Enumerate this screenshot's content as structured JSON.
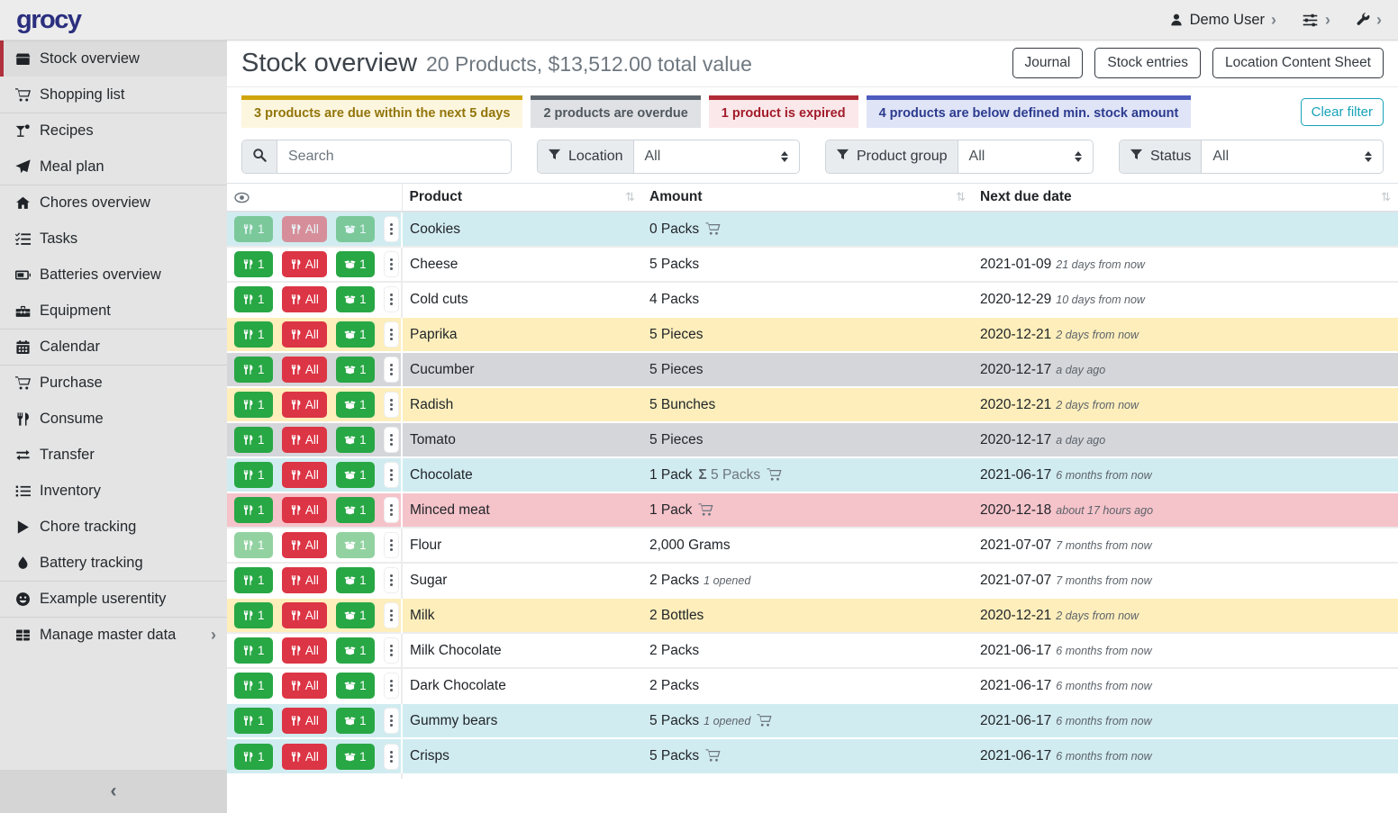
{
  "navbar": {
    "logo": "grocy",
    "user": {
      "label": "Demo User",
      "icon": "person"
    },
    "settings_icon": "sliders",
    "admin_icon": "wrench",
    "chevron_icon": "chevron-right"
  },
  "sidebar": {
    "items": [
      {
        "label": "Stock overview",
        "icon": "box",
        "active": true
      },
      {
        "label": "Shopping list",
        "icon": "cart"
      },
      {
        "label": "Recipes",
        "icon": "cocktail",
        "divider": true
      },
      {
        "label": "Meal plan",
        "icon": "paper-plane"
      },
      {
        "label": "Chores overview",
        "icon": "home",
        "divider": true
      },
      {
        "label": "Tasks",
        "icon": "tasks"
      },
      {
        "label": "Batteries overview",
        "icon": "battery"
      },
      {
        "label": "Equipment",
        "icon": "toolbox"
      },
      {
        "label": "Calendar",
        "icon": "calendar",
        "divider": true
      },
      {
        "label": "Purchase",
        "icon": "cart",
        "divider": true
      },
      {
        "label": "Consume",
        "icon": "utensils"
      },
      {
        "label": "Transfer",
        "icon": "transfer"
      },
      {
        "label": "Inventory",
        "icon": "list"
      },
      {
        "label": "Chore tracking",
        "icon": "play"
      },
      {
        "label": "Battery tracking",
        "icon": "droplet"
      },
      {
        "label": "Example userentity",
        "icon": "smiley",
        "divider": true
      },
      {
        "label": "Manage master data",
        "icon": "table-grid",
        "divider": true,
        "has_submenu": true
      }
    ],
    "collapse_icon": "‹"
  },
  "header": {
    "title": "Stock overview",
    "subtitle": "20 Products, $13,512.00 total value",
    "buttons": [
      "Journal",
      "Stock entries",
      "Location Content Sheet"
    ]
  },
  "filter_chips": [
    {
      "label": "3 products are due within the next 5 days",
      "type": "due"
    },
    {
      "label": "2 products are overdue",
      "type": "overdue"
    },
    {
      "label": "1 product is expired",
      "type": "expired"
    },
    {
      "label": "4 products are below defined min. stock amount",
      "type": "belowmin"
    }
  ],
  "clear_filter_label": "Clear filter",
  "search": {
    "placeholder": "Search",
    "icon": "search"
  },
  "filters": [
    {
      "label": "Location",
      "value": "All",
      "icon": "funnel"
    },
    {
      "label": "Product group",
      "value": "All",
      "icon": "funnel"
    },
    {
      "label": "Status",
      "value": "All",
      "icon": "funnel"
    }
  ],
  "table": {
    "columns": [
      "Product",
      "Amount",
      "Next due date"
    ],
    "eye_icon": "eye",
    "sort_icon": "⇅",
    "sigma": "Σ",
    "button_labels": {
      "consume_one": "1",
      "consume_all": "All",
      "open_one": "1"
    },
    "rows": [
      {
        "product": "Cookies",
        "amount": "0 Packs",
        "has_cart": true,
        "variant": "info",
        "disabled": [
          "consume1",
          "consumeall",
          "open1"
        ]
      },
      {
        "product": "Cheese",
        "amount": "5 Packs",
        "date": "2021-01-09",
        "date_note": "21 days from now",
        "variant": "none"
      },
      {
        "product": "Cold cuts",
        "amount": "4 Packs",
        "date": "2020-12-29",
        "date_note": "10 days from now",
        "variant": "none"
      },
      {
        "product": "Paprika",
        "amount": "5 Pieces",
        "date": "2020-12-21",
        "date_note": "2 days from now",
        "variant": "warning"
      },
      {
        "product": "Cucumber",
        "amount": "5 Pieces",
        "date": "2020-12-17",
        "date_note": "a day ago",
        "variant": "secondary"
      },
      {
        "product": "Radish",
        "amount": "5 Bunches",
        "date": "2020-12-21",
        "date_note": "2 days from now",
        "variant": "warning"
      },
      {
        "product": "Tomato",
        "amount": "5 Pieces",
        "date": "2020-12-17",
        "date_note": "a day ago",
        "variant": "secondary"
      },
      {
        "product": "Chocolate",
        "amount": "1 Pack",
        "amount_sum": "5 Packs",
        "has_cart": true,
        "date": "2021-06-17",
        "date_note": "6 months from now",
        "variant": "info"
      },
      {
        "product": "Minced meat",
        "amount": "1 Pack",
        "has_cart": true,
        "date": "2020-12-18",
        "date_note": "about 17 hours ago",
        "variant": "danger"
      },
      {
        "product": "Flour",
        "amount": "2,000 Grams",
        "date": "2021-07-07",
        "date_note": "7 months from now",
        "variant": "none",
        "disabled": [
          "consume1",
          "open1"
        ]
      },
      {
        "product": "Sugar",
        "amount": "2 Packs",
        "amount_note": "1 opened",
        "date": "2021-07-07",
        "date_note": "7 months from now",
        "variant": "none"
      },
      {
        "product": "Milk",
        "amount": "2 Bottles",
        "date": "2020-12-21",
        "date_note": "2 days from now",
        "variant": "warning"
      },
      {
        "product": "Milk Chocolate",
        "amount": "2 Packs",
        "date": "2021-06-17",
        "date_note": "6 months from now",
        "variant": "none"
      },
      {
        "product": "Dark Chocolate",
        "amount": "2 Packs",
        "date": "2021-06-17",
        "date_note": "6 months from now",
        "variant": "none"
      },
      {
        "product": "Gummy bears",
        "amount": "5 Packs",
        "amount_note": "1 opened",
        "has_cart": true,
        "date": "2021-06-17",
        "date_note": "6 months from now",
        "variant": "info"
      },
      {
        "product": "Crisps",
        "amount": "5 Packs",
        "has_cart": true,
        "date": "2021-06-17",
        "date_note": "6 months from now",
        "variant": "info"
      }
    ]
  },
  "colors": {
    "brand": "#2b2f7e",
    "active_marker": "#b0303c",
    "success": "#28a745",
    "danger": "#dc3545",
    "info_teal": "#17a2b8",
    "row_info": "#d1ecf1",
    "row_warning": "#fdeebb",
    "row_secondary": "#d4d6da",
    "row_danger": "#f5c3ca",
    "chip_due_bar": "#cfa50b",
    "chip_overdue_bar": "#5e666d",
    "chip_expired_bar": "#b22b38",
    "chip_belowmin_bar": "#4d5cbd"
  }
}
